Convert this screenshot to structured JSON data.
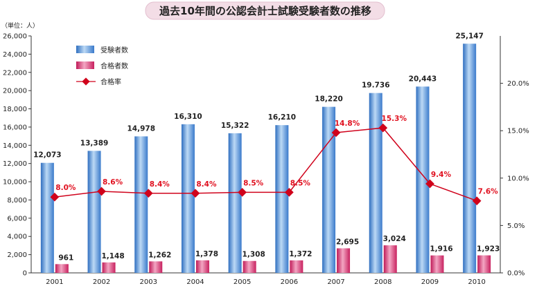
{
  "chart_data": {
    "type": "bar",
    "title": "過去10年間の公認会計士試験受験者数の推移",
    "unit_label": "（単位：人）",
    "categories": [
      "2001",
      "2002",
      "2003",
      "2004",
      "2005",
      "2006",
      "2007",
      "2008",
      "2009",
      "2010"
    ],
    "series": [
      {
        "name": "受験者数",
        "type": "bar",
        "axis": "left",
        "values": [
          12073,
          13389,
          14978,
          16310,
          15322,
          16210,
          18220,
          19736,
          20443,
          25147
        ],
        "labels": [
          "12,073",
          "13,389",
          "14,978",
          "16,310",
          "15,322",
          "16,210",
          "18,220",
          "19.736",
          "20,443",
          "25,147"
        ],
        "color": "#4a90d9"
      },
      {
        "name": "合格者数",
        "type": "bar",
        "axis": "left",
        "values": [
          961,
          1148,
          1262,
          1378,
          1308,
          1372,
          2695,
          3024,
          1916,
          1923
        ],
        "labels": [
          "961",
          "1,148",
          "1,262",
          "1,378",
          "1,308",
          "1,372",
          "2,695",
          "3,024",
          "1,916",
          "1,923"
        ],
        "color": "#d6336c"
      },
      {
        "name": "合格率",
        "type": "line",
        "axis": "right",
        "values": [
          8.0,
          8.6,
          8.4,
          8.4,
          8.5,
          8.5,
          14.8,
          15.3,
          9.4,
          7.6
        ],
        "labels": [
          "8.0%",
          "8.6%",
          "8.4%",
          "8.4%",
          "8.5%",
          "8.5%",
          "14.8%",
          "15.3%",
          "9.4%",
          "7.6%"
        ],
        "color": "#d0021b"
      }
    ],
    "y_left": {
      "min": 0,
      "max": 26000,
      "step": 2000,
      "tick_labels": [
        "0",
        "2,000",
        "4,000",
        "6,000",
        "8,000",
        "10,000",
        "12,000",
        "14,000",
        "16,000",
        "18,000",
        "20,000",
        "22,000",
        "24,000",
        "26,000"
      ]
    },
    "y_right": {
      "min": 0,
      "max": 25,
      "ticks": [
        0,
        5,
        10,
        15,
        20
      ],
      "tick_labels": [
        "0.0%",
        "5.0%",
        "10.0%",
        "15.0%",
        "20.0%"
      ]
    },
    "grid": false,
    "legend": "top-left"
  }
}
